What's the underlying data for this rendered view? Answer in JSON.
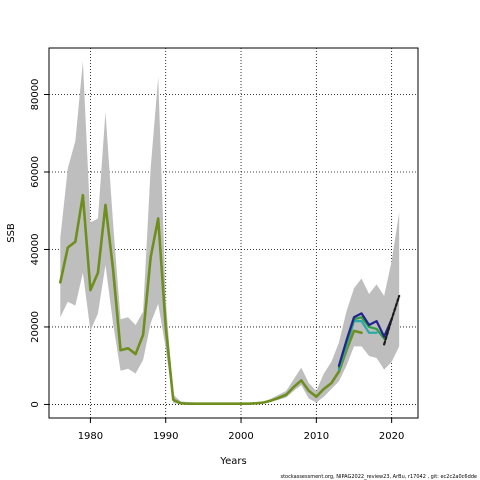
{
  "chart_data": {
    "type": "line",
    "xlabel": "Years",
    "ylabel": "SSB",
    "xlim": [
      1974.5,
      2023.5
    ],
    "ylim": [
      -3500,
      92000
    ],
    "x_ticks": [
      1980,
      1990,
      2000,
      2010,
      2020
    ],
    "y_ticks": [
      0,
      20000,
      40000,
      60000,
      80000
    ],
    "grid": true,
    "grid_style": "dotted",
    "ci_color": "#bebebe",
    "years": [
      1976,
      1977,
      1978,
      1979,
      1980,
      1981,
      1982,
      1983,
      1984,
      1985,
      1986,
      1987,
      1988,
      1989,
      1990,
      1991,
      1992,
      1993,
      1994,
      1995,
      1996,
      1997,
      1998,
      1999,
      2000,
      2001,
      2002,
      2003,
      2004,
      2005,
      2006,
      2007,
      2008,
      2009,
      2010,
      2011,
      2012,
      2013,
      2014,
      2015,
      2016,
      2017,
      2018,
      2019,
      2020,
      2021
    ],
    "ci_upper": [
      43000,
      61000,
      68000,
      88500,
      47000,
      48000,
      75500,
      47000,
      22000,
      22500,
      20500,
      24000,
      61000,
      84500,
      27000,
      2500,
      800,
      600,
      500,
      400,
      400,
      300,
      300,
      300,
      300,
      300,
      400,
      600,
      1500,
      2500,
      3500,
      6500,
      9500,
      5500,
      3500,
      8000,
      11000,
      16000,
      24000,
      30000,
      32500,
      28500,
      31000,
      28000,
      37000,
      49500
    ],
    "ci_lower": [
      22500,
      26500,
      25500,
      34000,
      19000,
      23500,
      36000,
      21000,
      8700,
      9200,
      8000,
      11500,
      21000,
      26000,
      14500,
      300,
      100,
      100,
      100,
      100,
      100,
      100,
      100,
      100,
      100,
      100,
      200,
      300,
      800,
      1200,
      1800,
      3500,
      5000,
      1500,
      500,
      2000,
      4000,
      6000,
      10000,
      15000,
      15000,
      12500,
      12000,
      9000,
      11000,
      15000
    ],
    "series": [
      {
        "color": "#6e8e1e",
        "values": [
          31500,
          40500,
          42000,
          54000,
          29500,
          34000,
          51500,
          35000,
          14000,
          14500,
          13000,
          18000,
          38000,
          48000,
          20000,
          1200,
          300,
          200,
          200,
          200,
          200,
          200,
          200,
          200,
          200,
          200,
          300,
          500,
          1000,
          1700,
          2500,
          4500,
          6200,
          3500,
          2000,
          4000,
          5500,
          8500,
          14000,
          19000,
          18500
        ]
      },
      {
        "color": "#2ba9a9",
        "values": [
          null,
          null,
          null,
          null,
          null,
          null,
          null,
          null,
          null,
          null,
          null,
          null,
          null,
          null,
          null,
          null,
          null,
          null,
          null,
          null,
          null,
          null,
          null,
          null,
          null,
          null,
          null,
          null,
          null,
          null,
          null,
          null,
          null,
          null,
          null,
          null,
          null,
          9000,
          15000,
          21500,
          21500,
          18500,
          18500
        ]
      },
      {
        "color": "#2f9e44",
        "values": [
          null,
          null,
          null,
          null,
          null,
          null,
          null,
          null,
          null,
          null,
          null,
          null,
          null,
          null,
          null,
          null,
          null,
          null,
          null,
          null,
          null,
          null,
          null,
          null,
          null,
          null,
          null,
          null,
          null,
          null,
          null,
          null,
          null,
          null,
          null,
          null,
          null,
          9500,
          16000,
          22000,
          22500,
          20000,
          19500,
          17000
        ]
      },
      {
        "color": "#23238e",
        "values": [
          null,
          null,
          null,
          null,
          null,
          null,
          null,
          null,
          null,
          null,
          null,
          null,
          null,
          null,
          null,
          null,
          null,
          null,
          null,
          null,
          null,
          null,
          null,
          null,
          null,
          null,
          null,
          null,
          null,
          null,
          null,
          null,
          null,
          null,
          null,
          null,
          null,
          10000,
          16500,
          22500,
          23500,
          20500,
          21500,
          17500,
          22000
        ]
      },
      {
        "color": "#1a1a1a",
        "dashed": true,
        "values": [
          null,
          null,
          null,
          null,
          null,
          null,
          null,
          null,
          null,
          null,
          null,
          null,
          null,
          null,
          null,
          null,
          null,
          null,
          null,
          null,
          null,
          null,
          null,
          null,
          null,
          null,
          null,
          null,
          null,
          null,
          null,
          null,
          null,
          null,
          null,
          null,
          null,
          null,
          null,
          null,
          null,
          null,
          null,
          15500,
          22000,
          28000
        ]
      }
    ]
  },
  "footer": {
    "note": "stockassessment.org, NIPAG2022_review23, ArBu, r17042 , git: ec2c2a0c6dde"
  }
}
